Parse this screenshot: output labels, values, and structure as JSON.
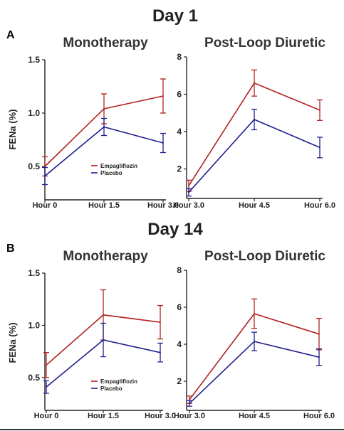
{
  "figure": {
    "panels": [
      {
        "letter": "A",
        "day_title": "Day 1"
      },
      {
        "letter": "B",
        "day_title": "Day 14"
      }
    ]
  },
  "colors": {
    "empagliflozin": "#b22222",
    "placebo": "#1f1f8f",
    "axis": "#222222"
  },
  "chart_data": [
    {
      "panel": "A",
      "day": "Day 1",
      "type": "line",
      "title": "Monotherapy",
      "xlabel": "",
      "ylabel": "FENa (%)",
      "categories": [
        "Hour 0",
        "Hour 1.5",
        "Hour 3.0"
      ],
      "ylim": [
        0.2,
        1.5
      ],
      "yticks": [
        "0.5",
        "1.0",
        "1.5"
      ],
      "legend": "bottom-center",
      "series": [
        {
          "name": "Empagliflozin",
          "values": [
            0.5,
            1.04,
            1.16
          ],
          "errors": [
            0.09,
            0.14,
            0.16
          ]
        },
        {
          "name": "Placebo",
          "values": [
            0.41,
            0.87,
            0.72
          ],
          "errors": [
            0.08,
            0.08,
            0.09
          ]
        }
      ]
    },
    {
      "panel": "A",
      "day": "Day 1",
      "type": "line",
      "title": "Post-Loop Diuretic",
      "xlabel": "",
      "ylabel": "",
      "categories": [
        "Hour 3.0",
        "Hour 4.5",
        "Hour 6.0"
      ],
      "ylim": [
        0.5,
        8
      ],
      "yticks": [
        "2",
        "4",
        "6",
        "8"
      ],
      "series": [
        {
          "name": "Empagliflozin",
          "values": [
            1.1,
            6.6,
            5.15
          ],
          "errors": [
            0.3,
            0.7,
            0.55
          ]
        },
        {
          "name": "Placebo",
          "values": [
            0.75,
            4.65,
            3.15
          ],
          "errors": [
            0.2,
            0.55,
            0.55
          ]
        }
      ]
    },
    {
      "panel": "B",
      "day": "Day 14",
      "type": "line",
      "title": "Monotherapy",
      "xlabel": "",
      "ylabel": "FENa (%)",
      "categories": [
        "Hour 0",
        "Hour 1.5",
        "Hour 3.0"
      ],
      "ylim": [
        0.2,
        1.5
      ],
      "yticks": [
        "0.5",
        "1.0",
        "1.5"
      ],
      "legend": "bottom-right",
      "series": [
        {
          "name": "Empagliflozin",
          "values": [
            0.62,
            1.1,
            1.03
          ],
          "errors": [
            0.12,
            0.24,
            0.16
          ]
        },
        {
          "name": "Placebo",
          "values": [
            0.41,
            0.86,
            0.74
          ],
          "errors": [
            0.06,
            0.16,
            0.09
          ]
        }
      ]
    },
    {
      "panel": "B",
      "day": "Day 14",
      "type": "line",
      "title": "Post-Loop Diuretic",
      "xlabel": "",
      "ylabel": "",
      "categories": [
        "Hour 3.0",
        "Hour 4.5",
        "Hour 6.0"
      ],
      "ylim": [
        0.5,
        8
      ],
      "yticks": [
        "2",
        "4",
        "6",
        "8"
      ],
      "series": [
        {
          "name": "Empagliflozin",
          "values": [
            1.0,
            5.65,
            4.55
          ],
          "errors": [
            0.2,
            0.8,
            0.85
          ]
        },
        {
          "name": "Placebo",
          "values": [
            0.8,
            4.15,
            3.3
          ],
          "errors": [
            0.15,
            0.5,
            0.45
          ]
        }
      ]
    }
  ]
}
